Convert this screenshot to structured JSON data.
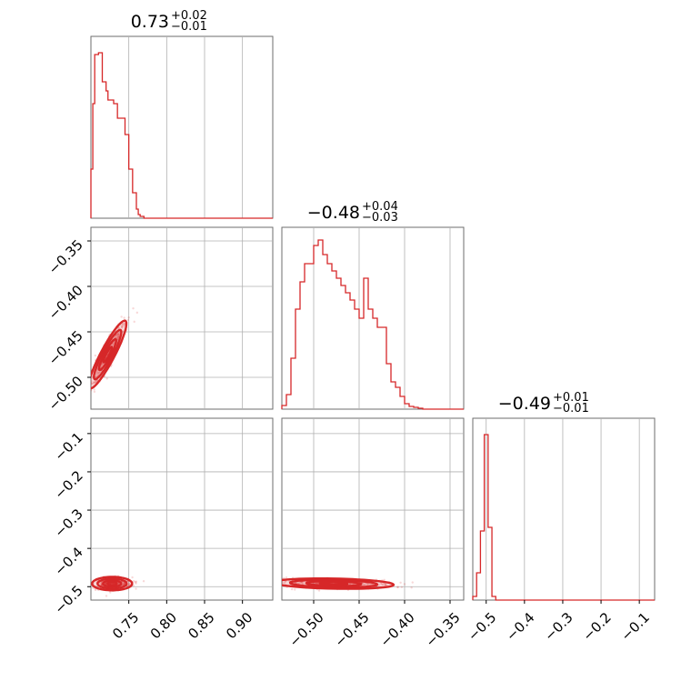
{
  "chart_data": {
    "type": "corner",
    "color": "#d62728",
    "parameters": [
      {
        "title_main": "0.73",
        "title_plus": "+0.02",
        "title_minus": "−0.01",
        "range": [
          0.7,
          0.94
        ],
        "ticks": [
          0.75,
          0.8,
          0.85,
          0.9
        ],
        "tick_labels": [
          "0.75",
          "0.80",
          "0.85",
          "0.90"
        ],
        "histogram": {
          "x": [
            0.7,
            0.7025,
            0.705,
            0.7075,
            0.71,
            0.7125,
            0.715,
            0.7175,
            0.72,
            0.7225,
            0.725,
            0.7275,
            0.73,
            0.7325,
            0.735,
            0.7375,
            0.74,
            0.7425,
            0.745,
            0.7475,
            0.75,
            0.7525,
            0.755,
            0.7575,
            0.76,
            0.7625,
            0.765,
            0.7675,
            0.77,
            0.94
          ],
          "density": [
            0.27,
            0.63,
            0.9,
            0.9,
            0.91,
            0.91,
            0.75,
            0.75,
            0.7,
            0.65,
            0.65,
            0.65,
            0.63,
            0.63,
            0.55,
            0.55,
            0.55,
            0.55,
            0.46,
            0.46,
            0.27,
            0.27,
            0.14,
            0.14,
            0.05,
            0.02,
            0.01,
            0.01,
            0.0,
            0.0
          ]
        }
      },
      {
        "title_main": "−0.48",
        "title_plus": "+0.04",
        "title_minus": "−0.03",
        "range": [
          -0.535,
          -0.335
        ],
        "ticks": [
          -0.5,
          -0.45,
          -0.4,
          -0.35
        ],
        "tick_labels": [
          "−0.50",
          "−0.45",
          "−0.40",
          "−0.35"
        ],
        "y_ticks": [
          -0.35,
          -0.4,
          -0.45,
          -0.5
        ],
        "y_tick_labels": [
          "−0.35",
          "−0.40",
          "−0.45",
          "−0.50"
        ],
        "histogram": {
          "x": [
            -0.535,
            -0.53,
            -0.525,
            -0.52,
            -0.515,
            -0.51,
            -0.505,
            -0.5,
            -0.495,
            -0.49,
            -0.485,
            -0.48,
            -0.475,
            -0.47,
            -0.465,
            -0.46,
            -0.455,
            -0.45,
            -0.445,
            -0.44,
            -0.435,
            -0.43,
            -0.425,
            -0.42,
            -0.415,
            -0.41,
            -0.405,
            -0.4,
            -0.395,
            -0.39,
            -0.385,
            -0.38,
            -0.335
          ],
          "density": [
            0.02,
            0.08,
            0.28,
            0.55,
            0.7,
            0.8,
            0.8,
            0.9,
            0.93,
            0.85,
            0.8,
            0.76,
            0.72,
            0.68,
            0.64,
            0.6,
            0.55,
            0.5,
            0.72,
            0.55,
            0.5,
            0.45,
            0.45,
            0.25,
            0.15,
            0.12,
            0.07,
            0.03,
            0.015,
            0.01,
            0.005,
            0.0,
            0.0
          ]
        }
      },
      {
        "title_main": "−0.49",
        "title_plus": "+0.01",
        "title_minus": "−0.01",
        "range": [
          -0.535,
          -0.06
        ],
        "ticks": [
          -0.5,
          -0.4,
          -0.3,
          -0.2,
          -0.1
        ],
        "tick_labels": [
          "−0.5",
          "−0.4",
          "−0.3",
          "−0.2",
          "−0.1"
        ],
        "y_ticks": [
          -0.1,
          -0.2,
          -0.3,
          -0.4,
          -0.5
        ],
        "y_tick_labels": [
          "−0.1",
          "−0.2",
          "−0.3",
          "−0.4",
          "−0.5"
        ],
        "histogram": {
          "x": [
            -0.535,
            -0.525,
            -0.515,
            -0.505,
            -0.495,
            -0.485,
            -0.475,
            -0.06
          ],
          "density": [
            0.02,
            0.15,
            0.38,
            0.91,
            0.4,
            0.02,
            0.0,
            0.0
          ]
        }
      }
    ],
    "pairs": [
      {
        "row": 1,
        "col": 0,
        "center": [
          0.722,
          -0.475
        ],
        "direction": [
          0.032,
          0.05
        ],
        "spread": [
          0.02,
          0.004
        ]
      },
      {
        "row": 2,
        "col": 0,
        "center": [
          0.728,
          -0.492
        ],
        "direction": [
          0.025,
          0.0
        ],
        "spread": [
          0.012,
          0.008
        ]
      },
      {
        "row": 2,
        "col": 1,
        "center": [
          -0.478,
          -0.492
        ],
        "direction": [
          0.042,
          -0.002
        ],
        "spread": [
          0.03,
          0.006
        ]
      }
    ]
  }
}
